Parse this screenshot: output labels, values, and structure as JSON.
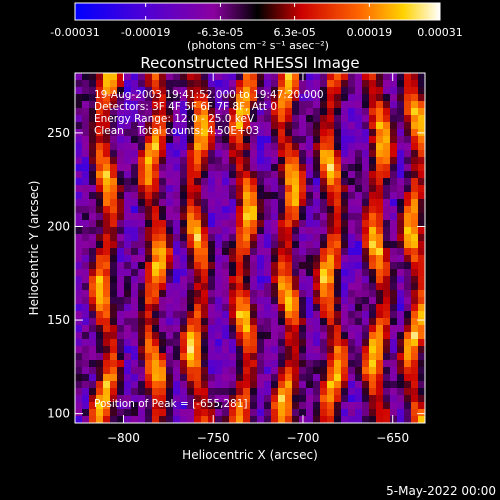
{
  "colorbar": {
    "ticks": [
      "-0.00031",
      "-0.00019",
      "-6.3e-05",
      "6.3e-05",
      "0.00019",
      "0.00031"
    ],
    "tick_values": [
      -0.00031,
      -0.00019,
      -6.3e-05,
      6.3e-05,
      0.00019,
      0.00031
    ],
    "range": [
      -0.00031,
      0.00031
    ],
    "unit_label": "(photons cm⁻² s⁻¹ asec⁻²)"
  },
  "chart_data": {
    "type": "heatmap",
    "title": "Reconstructed RHESSI Image",
    "xlabel": "Heliocentric X (arcsec)",
    "ylabel": "Heliocentric Y (arcsec)",
    "xlim": [
      -827,
      -632
    ],
    "ylim": [
      95,
      282
    ],
    "x_ticks": [
      -800,
      -750,
      -700,
      -650
    ],
    "x_tick_labels": [
      "−800",
      "−750",
      "−700",
      "−650"
    ],
    "y_ticks": [
      100,
      150,
      200,
      250
    ],
    "y_tick_labels": [
      "100",
      "150",
      "200",
      "250"
    ],
    "bright_stripes_x": [
      -810,
      -783,
      -759,
      -733,
      -708,
      -684,
      -658,
      -637
    ],
    "peak": [
      -655,
      281
    ],
    "info_lines": [
      "19-Aug-2003 19:41:52.000 to 19:47:20.000",
      "Detectors: 3F 4F 5F 6F 7F 8F, Att 0",
      "Energy Range: 12.0 - 25.0 keV",
      "Clean    Total counts: 4.50E+03"
    ],
    "peak_label": "Position of Peak = [-655,281]"
  },
  "footer": {
    "date": "5-May-2022 00:00"
  }
}
